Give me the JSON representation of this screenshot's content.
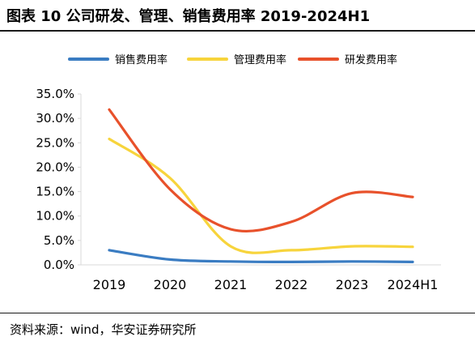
{
  "figure": {
    "title": "图表 10 公司研发、管理、销售费用率 2019-2024H1",
    "source": "资料来源：wind，华安证券研究所"
  },
  "chart_data": {
    "type": "line",
    "x": [
      "2019",
      "2020",
      "2021",
      "2022",
      "2023",
      "2024H1"
    ],
    "ylim": [
      0,
      35
    ],
    "yticks": [
      "0.0%",
      "5.0%",
      "10.0%",
      "15.0%",
      "20.0%",
      "25.0%",
      "30.0%",
      "35.0%"
    ],
    "yunit": "%",
    "grid": false,
    "legend": "top",
    "series": [
      {
        "name": "销售费用率",
        "color": "#3a7cc2",
        "values": [
          3.0,
          1.1,
          0.7,
          0.6,
          0.7,
          0.6
        ]
      },
      {
        "name": "管理费用率",
        "color": "#f7d43c",
        "values": [
          25.8,
          17.8,
          3.8,
          3.0,
          3.8,
          3.7
        ]
      },
      {
        "name": "研发费用率",
        "color": "#e8512b",
        "values": [
          31.8,
          15.5,
          7.3,
          8.8,
          14.7,
          13.9
        ]
      }
    ]
  }
}
